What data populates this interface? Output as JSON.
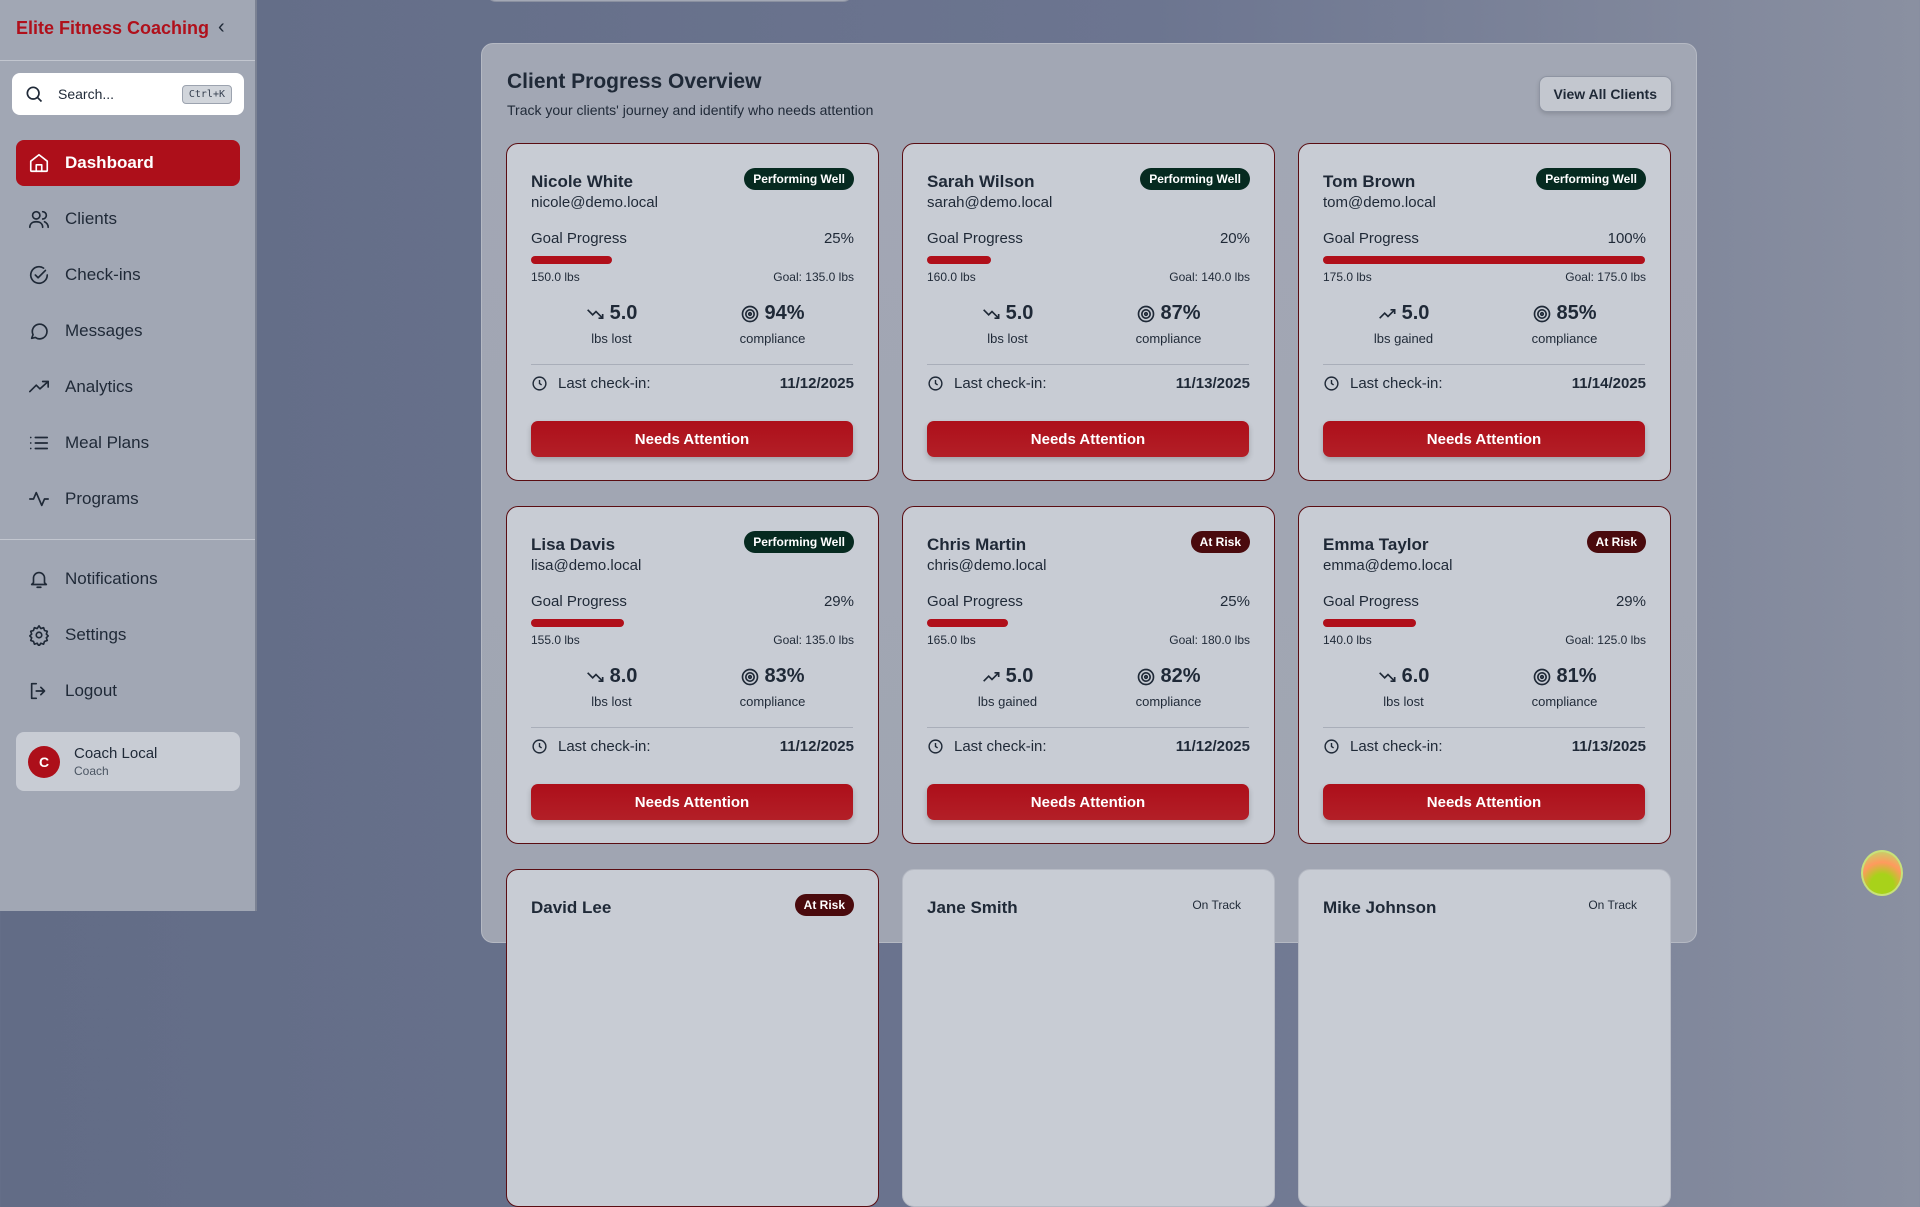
{
  "sidebar": {
    "brand": "Elite Fitness Coaching",
    "search_placeholder": "Search...",
    "shortcut": "Ctrl+K",
    "items": [
      {
        "label": "Dashboard",
        "icon": "home-icon"
      },
      {
        "label": "Clients",
        "icon": "users-icon"
      },
      {
        "label": "Check-ins",
        "icon": "check-circle-icon"
      },
      {
        "label": "Messages",
        "icon": "message-icon"
      },
      {
        "label": "Analytics",
        "icon": "trending-up-icon"
      },
      {
        "label": "Meal Plans",
        "icon": "list-icon"
      },
      {
        "label": "Programs",
        "icon": "activity-icon"
      }
    ],
    "bottom": [
      {
        "label": "Notifications",
        "icon": "bell-icon"
      },
      {
        "label": "Settings",
        "icon": "gear-icon"
      },
      {
        "label": "Logout",
        "icon": "logout-icon"
      }
    ],
    "user": {
      "initial": "C",
      "name": "Coach Local",
      "role": "Coach"
    }
  },
  "main": {
    "title": "Client Progress Overview",
    "subtitle": "Track your clients' journey and identify who needs attention",
    "view_all": "View All Clients",
    "clients": [
      {
        "name": "Nicole White",
        "email": "nicole@demo.local",
        "status": "Performing Well",
        "progress": 25,
        "progress_label": "25%",
        "start": "150.0 lbs",
        "goal": "Goal: 135.0 lbs",
        "change": "5.0",
        "change_label": "lbs lost",
        "trend": "down",
        "compliance": "94%",
        "last_checkin": "11/12/2025"
      },
      {
        "name": "Sarah Wilson",
        "email": "sarah@demo.local",
        "status": "Performing Well",
        "progress": 20,
        "progress_label": "20%",
        "start": "160.0 lbs",
        "goal": "Goal: 140.0 lbs",
        "change": "5.0",
        "change_label": "lbs lost",
        "trend": "down",
        "compliance": "87%",
        "last_checkin": "11/13/2025"
      },
      {
        "name": "Tom Brown",
        "email": "tom@demo.local",
        "status": "Performing Well",
        "progress": 100,
        "progress_label": "100%",
        "start": "175.0 lbs",
        "goal": "Goal: 175.0 lbs",
        "change": "5.0",
        "change_label": "lbs gained",
        "trend": "up",
        "compliance": "85%",
        "last_checkin": "11/14/2025"
      },
      {
        "name": "Lisa Davis",
        "email": "lisa@demo.local",
        "status": "Performing Well",
        "progress": 29,
        "progress_label": "29%",
        "start": "155.0 lbs",
        "goal": "Goal: 135.0 lbs",
        "change": "8.0",
        "change_label": "lbs lost",
        "trend": "down",
        "compliance": "83%",
        "last_checkin": "11/12/2025"
      },
      {
        "name": "Chris Martin",
        "email": "chris@demo.local",
        "status": "At Risk",
        "progress": 25,
        "progress_label": "25%",
        "start": "165.0 lbs",
        "goal": "Goal: 180.0 lbs",
        "change": "5.0",
        "change_label": "lbs gained",
        "trend": "up",
        "compliance": "82%",
        "last_checkin": "11/12/2025"
      },
      {
        "name": "Emma Taylor",
        "email": "emma@demo.local",
        "status": "At Risk",
        "progress": 29,
        "progress_label": "29%",
        "start": "140.0 lbs",
        "goal": "Goal: 125.0 lbs",
        "change": "6.0",
        "change_label": "lbs lost",
        "trend": "down",
        "compliance": "81%",
        "last_checkin": "11/13/2025"
      },
      {
        "name": "David Lee",
        "status": "At Risk"
      },
      {
        "name": "Jane Smith",
        "status": "On Track"
      },
      {
        "name": "Mike Johnson",
        "status": "On Track"
      }
    ],
    "checkin_label": "Last check-in:",
    "compliance_label": "compliance",
    "goal_label": "Goal Progress",
    "action": "Needs Attention"
  },
  "colors": {
    "accent": "#ad0f1a",
    "performing_well": "#062a20",
    "at_risk": "#4a0a0d"
  }
}
